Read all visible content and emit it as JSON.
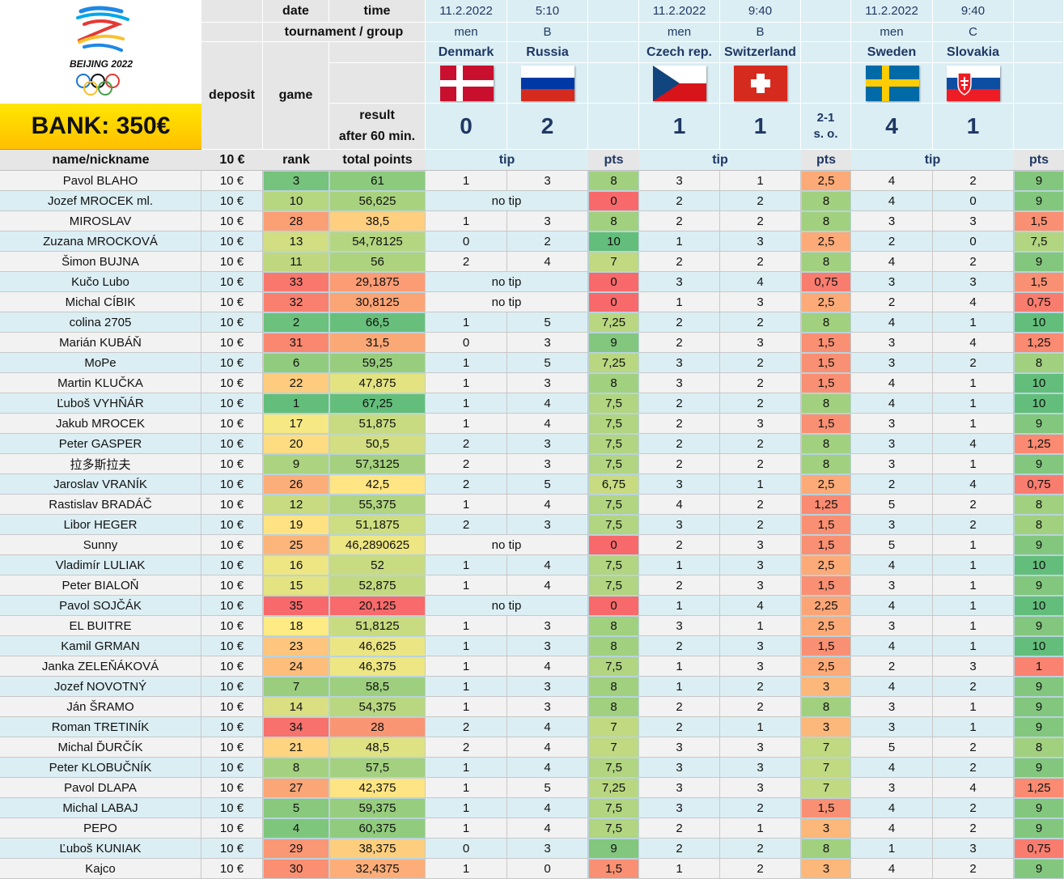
{
  "header": {
    "date_label": "date",
    "time_label": "time",
    "tournament_label": "tournament / group",
    "deposit_label": "deposit",
    "game_label": "game",
    "result_label_1": "result",
    "result_label_2": "after 60 min.",
    "bank": "BANK: 350€",
    "logo_text": "BEIJING 2022",
    "columns": {
      "name": "name/nickname",
      "deposit": "10 €",
      "rank": "rank",
      "total": "total points",
      "tip": "tip",
      "pts": "pts"
    }
  },
  "matches": [
    {
      "date": "11.2.2022",
      "time": "5:10",
      "category": "men",
      "group": "B",
      "home": "Denmark",
      "away": "Russia",
      "home_flag": "denmark-flag-icon",
      "away_flag": "russia-flag-icon",
      "home_score": "0",
      "away_score": "2",
      "note_1": "",
      "note_2": ""
    },
    {
      "date": "11.2.2022",
      "time": "9:40",
      "category": "men",
      "group": "B",
      "home": "Czech rep.",
      "away": "Switzerland",
      "home_flag": "czech-flag-icon",
      "away_flag": "switzerland-flag-icon",
      "home_score": "1",
      "away_score": "1",
      "note_1": "2-1",
      "note_2": "s. o."
    },
    {
      "date": "11.2.2022",
      "time": "9:40",
      "category": "men",
      "group": "C",
      "home": "Sweden",
      "away": "Slovakia",
      "home_flag": "sweden-flag-icon",
      "away_flag": "slovakia-flag-icon",
      "home_score": "4",
      "away_score": "1",
      "note_1": "",
      "note_2": ""
    }
  ],
  "no_tip_label": "no tip",
  "colors": {
    "heat_green": "#63be7b",
    "heat_yellow": "#ffeb84",
    "heat_red": "#f8696b",
    "bank_yellow": "#ffd700",
    "header_gray": "#e6e6e6",
    "header_blue": "#dbeef4"
  },
  "rows": [
    {
      "name": "Pavol BLAHO",
      "deposit": "10 €",
      "rank": "3",
      "total": "61",
      "t1": [
        "1",
        "3"
      ],
      "p1": "8",
      "t2": [
        "3",
        "1"
      ],
      "p2": "2,5",
      "t3": [
        "4",
        "2"
      ],
      "p3": "9"
    },
    {
      "name": "Jozef MROCEK ml.",
      "deposit": "10 €",
      "rank": "10",
      "total": "56,625",
      "t1": null,
      "p1": "0",
      "t2": [
        "2",
        "2"
      ],
      "p2": "8",
      "t3": [
        "4",
        "0"
      ],
      "p3": "9"
    },
    {
      "name": "MIROSLAV",
      "deposit": "10 €",
      "rank": "28",
      "total": "38,5",
      "t1": [
        "1",
        "3"
      ],
      "p1": "8",
      "t2": [
        "2",
        "2"
      ],
      "p2": "8",
      "t3": [
        "3",
        "3"
      ],
      "p3": "1,5"
    },
    {
      "name": "Zuzana MROCKOVÁ",
      "deposit": "10 €",
      "rank": "13",
      "total": "54,78125",
      "t1": [
        "0",
        "2"
      ],
      "p1": "10",
      "t2": [
        "1",
        "3"
      ],
      "p2": "2,5",
      "t3": [
        "2",
        "0"
      ],
      "p3": "7,5"
    },
    {
      "name": "Šimon BUJNA",
      "deposit": "10 €",
      "rank": "11",
      "total": "56",
      "t1": [
        "2",
        "4"
      ],
      "p1": "7",
      "t2": [
        "2",
        "2"
      ],
      "p2": "8",
      "t3": [
        "4",
        "2"
      ],
      "p3": "9"
    },
    {
      "name": "Kučo Lubo",
      "deposit": "10 €",
      "rank": "33",
      "total": "29,1875",
      "t1": null,
      "p1": "0",
      "t2": [
        "3",
        "4"
      ],
      "p2": "0,75",
      "t3": [
        "3",
        "3"
      ],
      "p3": "1,5"
    },
    {
      "name": "Michal CÍBIK",
      "deposit": "10 €",
      "rank": "32",
      "total": "30,8125",
      "t1": null,
      "p1": "0",
      "t2": [
        "1",
        "3"
      ],
      "p2": "2,5",
      "t3": [
        "2",
        "4"
      ],
      "p3": "0,75"
    },
    {
      "name": "colina 2705",
      "deposit": "10 €",
      "rank": "2",
      "total": "66,5",
      "t1": [
        "1",
        "5"
      ],
      "p1": "7,25",
      "t2": [
        "2",
        "2"
      ],
      "p2": "8",
      "t3": [
        "4",
        "1"
      ],
      "p3": "10"
    },
    {
      "name": "Marián KUBÁŇ",
      "deposit": "10 €",
      "rank": "31",
      "total": "31,5",
      "t1": [
        "0",
        "3"
      ],
      "p1": "9",
      "t2": [
        "2",
        "3"
      ],
      "p2": "1,5",
      "t3": [
        "3",
        "4"
      ],
      "p3": "1,25"
    },
    {
      "name": "MoPe",
      "deposit": "10 €",
      "rank": "6",
      "total": "59,25",
      "t1": [
        "1",
        "5"
      ],
      "p1": "7,25",
      "t2": [
        "3",
        "2"
      ],
      "p2": "1,5",
      "t3": [
        "3",
        "2"
      ],
      "p3": "8"
    },
    {
      "name": "Martin KLUČKA",
      "deposit": "10 €",
      "rank": "22",
      "total": "47,875",
      "t1": [
        "1",
        "3"
      ],
      "p1": "8",
      "t2": [
        "3",
        "2"
      ],
      "p2": "1,5",
      "t3": [
        "4",
        "1"
      ],
      "p3": "10"
    },
    {
      "name": "Ľuboš VYHŇÁR",
      "deposit": "10 €",
      "rank": "1",
      "total": "67,25",
      "t1": [
        "1",
        "4"
      ],
      "p1": "7,5",
      "t2": [
        "2",
        "2"
      ],
      "p2": "8",
      "t3": [
        "4",
        "1"
      ],
      "p3": "10"
    },
    {
      "name": "Jakub MROCEK",
      "deposit": "10 €",
      "rank": "17",
      "total": "51,875",
      "t1": [
        "1",
        "4"
      ],
      "p1": "7,5",
      "t2": [
        "2",
        "3"
      ],
      "p2": "1,5",
      "t3": [
        "3",
        "1"
      ],
      "p3": "9"
    },
    {
      "name": "Peter GASPER",
      "deposit": "10 €",
      "rank": "20",
      "total": "50,5",
      "t1": [
        "2",
        "3"
      ],
      "p1": "7,5",
      "t2": [
        "2",
        "2"
      ],
      "p2": "8",
      "t3": [
        "3",
        "4"
      ],
      "p3": "1,25"
    },
    {
      "name": "拉多斯拉夫",
      "deposit": "10 €",
      "rank": "9",
      "total": "57,3125",
      "t1": [
        "2",
        "3"
      ],
      "p1": "7,5",
      "t2": [
        "2",
        "2"
      ],
      "p2": "8",
      "t3": [
        "3",
        "1"
      ],
      "p3": "9"
    },
    {
      "name": "Jaroslav VRANÍK",
      "deposit": "10 €",
      "rank": "26",
      "total": "42,5",
      "t1": [
        "2",
        "5"
      ],
      "p1": "6,75",
      "t2": [
        "3",
        "1"
      ],
      "p2": "2,5",
      "t3": [
        "2",
        "4"
      ],
      "p3": "0,75"
    },
    {
      "name": "Rastislav BRADÁČ",
      "deposit": "10 €",
      "rank": "12",
      "total": "55,375",
      "t1": [
        "1",
        "4"
      ],
      "p1": "7,5",
      "t2": [
        "4",
        "2"
      ],
      "p2": "1,25",
      "t3": [
        "5",
        "2"
      ],
      "p3": "8"
    },
    {
      "name": "Libor HEGER",
      "deposit": "10 €",
      "rank": "19",
      "total": "51,1875",
      "t1": [
        "2",
        "3"
      ],
      "p1": "7,5",
      "t2": [
        "3",
        "2"
      ],
      "p2": "1,5",
      "t3": [
        "3",
        "2"
      ],
      "p3": "8"
    },
    {
      "name": "Sunny",
      "deposit": "10 €",
      "rank": "25",
      "total": "46,2890625",
      "t1": null,
      "p1": "0",
      "t2": [
        "2",
        "3"
      ],
      "p2": "1,5",
      "t3": [
        "5",
        "1"
      ],
      "p3": "9"
    },
    {
      "name": "Vladimír LULIAK",
      "deposit": "10 €",
      "rank": "16",
      "total": "52",
      "t1": [
        "1",
        "4"
      ],
      "p1": "7,5",
      "t2": [
        "1",
        "3"
      ],
      "p2": "2,5",
      "t3": [
        "4",
        "1"
      ],
      "p3": "10"
    },
    {
      "name": "Peter BIALOŇ",
      "deposit": "10 €",
      "rank": "15",
      "total": "52,875",
      "t1": [
        "1",
        "4"
      ],
      "p1": "7,5",
      "t2": [
        "2",
        "3"
      ],
      "p2": "1,5",
      "t3": [
        "3",
        "1"
      ],
      "p3": "9"
    },
    {
      "name": "Pavol SOJČÁK",
      "deposit": "10 €",
      "rank": "35",
      "total": "20,125",
      "t1": null,
      "p1": "0",
      "t2": [
        "1",
        "4"
      ],
      "p2": "2,25",
      "t3": [
        "4",
        "1"
      ],
      "p3": "10"
    },
    {
      "name": "EL BUITRE",
      "deposit": "10 €",
      "rank": "18",
      "total": "51,8125",
      "t1": [
        "1",
        "3"
      ],
      "p1": "8",
      "t2": [
        "3",
        "1"
      ],
      "p2": "2,5",
      "t3": [
        "3",
        "1"
      ],
      "p3": "9"
    },
    {
      "name": "Kamil GRMAN",
      "deposit": "10 €",
      "rank": "23",
      "total": "46,625",
      "t1": [
        "1",
        "3"
      ],
      "p1": "8",
      "t2": [
        "2",
        "3"
      ],
      "p2": "1,5",
      "t3": [
        "4",
        "1"
      ],
      "p3": "10"
    },
    {
      "name": "Janka ZELEŇÁKOVÁ",
      "deposit": "10 €",
      "rank": "24",
      "total": "46,375",
      "t1": [
        "1",
        "4"
      ],
      "p1": "7,5",
      "t2": [
        "1",
        "3"
      ],
      "p2": "2,5",
      "t3": [
        "2",
        "3"
      ],
      "p3": "1"
    },
    {
      "name": "Jozef NOVOTNÝ",
      "deposit": "10 €",
      "rank": "7",
      "total": "58,5",
      "t1": [
        "1",
        "3"
      ],
      "p1": "8",
      "t2": [
        "1",
        "2"
      ],
      "p2": "3",
      "t3": [
        "4",
        "2"
      ],
      "p3": "9"
    },
    {
      "name": "Ján ŠRAMO",
      "deposit": "10 €",
      "rank": "14",
      "total": "54,375",
      "t1": [
        "1",
        "3"
      ],
      "p1": "8",
      "t2": [
        "2",
        "2"
      ],
      "p2": "8",
      "t3": [
        "3",
        "1"
      ],
      "p3": "9"
    },
    {
      "name": "Roman TRETINÍK",
      "deposit": "10 €",
      "rank": "34",
      "total": "28",
      "t1": [
        "2",
        "4"
      ],
      "p1": "7",
      "t2": [
        "2",
        "1"
      ],
      "p2": "3",
      "t3": [
        "3",
        "1"
      ],
      "p3": "9"
    },
    {
      "name": "Michal ĎURČÍK",
      "deposit": "10 €",
      "rank": "21",
      "total": "48,5",
      "t1": [
        "2",
        "4"
      ],
      "p1": "7",
      "t2": [
        "3",
        "3"
      ],
      "p2": "7",
      "t3": [
        "5",
        "2"
      ],
      "p3": "8"
    },
    {
      "name": "Peter KLOBUČNÍK",
      "deposit": "10 €",
      "rank": "8",
      "total": "57,5",
      "t1": [
        "1",
        "4"
      ],
      "p1": "7,5",
      "t2": [
        "3",
        "3"
      ],
      "p2": "7",
      "t3": [
        "4",
        "2"
      ],
      "p3": "9"
    },
    {
      "name": "Pavol DLAPA",
      "deposit": "10 €",
      "rank": "27",
      "total": "42,375",
      "t1": [
        "1",
        "5"
      ],
      "p1": "7,25",
      "t2": [
        "3",
        "3"
      ],
      "p2": "7",
      "t3": [
        "3",
        "4"
      ],
      "p3": "1,25"
    },
    {
      "name": "Michal LABAJ",
      "deposit": "10 €",
      "rank": "5",
      "total": "59,375",
      "t1": [
        "1",
        "4"
      ],
      "p1": "7,5",
      "t2": [
        "3",
        "2"
      ],
      "p2": "1,5",
      "t3": [
        "4",
        "2"
      ],
      "p3": "9"
    },
    {
      "name": "PEPO",
      "deposit": "10 €",
      "rank": "4",
      "total": "60,375",
      "t1": [
        "1",
        "4"
      ],
      "p1": "7,5",
      "t2": [
        "2",
        "1"
      ],
      "p2": "3",
      "t3": [
        "4",
        "2"
      ],
      "p3": "9"
    },
    {
      "name": "Ľuboš KUNIAK",
      "deposit": "10 €",
      "rank": "29",
      "total": "38,375",
      "t1": [
        "0",
        "3"
      ],
      "p1": "9",
      "t2": [
        "2",
        "2"
      ],
      "p2": "8",
      "t3": [
        "1",
        "3"
      ],
      "p3": "0,75"
    },
    {
      "name": "Kajco",
      "deposit": "10 €",
      "rank": "30",
      "total": "32,4375",
      "t1": [
        "1",
        "0"
      ],
      "p1": "1,5",
      "t2": [
        "1",
        "2"
      ],
      "p2": "3",
      "t3": [
        "4",
        "2"
      ],
      "p3": "9"
    }
  ]
}
